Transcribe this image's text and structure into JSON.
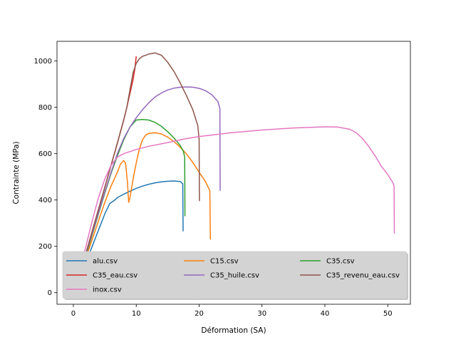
{
  "chart_data": {
    "type": "line",
    "title": "",
    "xlabel": "Déformation (SA)",
    "ylabel": "Contrainte (MPa)",
    "xlim": [
      -2.6,
      53.6
    ],
    "ylim": [
      -50,
      1085
    ],
    "xticks": [
      0,
      10,
      20,
      30,
      40,
      50
    ],
    "yticks": [
      0,
      200,
      400,
      600,
      800,
      1000
    ],
    "grid": false,
    "legend": {
      "position": "lower-left",
      "columns": 3
    },
    "series": [
      {
        "name": "alu.csv",
        "color": "#1f77b4",
        "points": [
          [
            0,
            0
          ],
          [
            1,
            60
          ],
          [
            2,
            130
          ],
          [
            3,
            200
          ],
          [
            4,
            270
          ],
          [
            5,
            340
          ],
          [
            5.8,
            385
          ],
          [
            6.5,
            398
          ],
          [
            7,
            410
          ],
          [
            8,
            425
          ],
          [
            9,
            438
          ],
          [
            10,
            450
          ],
          [
            11,
            460
          ],
          [
            12,
            468
          ],
          [
            13,
            474
          ],
          [
            14,
            478
          ],
          [
            15,
            481
          ],
          [
            16,
            482
          ],
          [
            17,
            480
          ],
          [
            17.4,
            470
          ],
          [
            17.45,
            265
          ]
        ]
      },
      {
        "name": "C15.csv",
        "color": "#ff7f0e",
        "points": [
          [
            0,
            0
          ],
          [
            1,
            70
          ],
          [
            2,
            150
          ],
          [
            3,
            230
          ],
          [
            4,
            310
          ],
          [
            5,
            390
          ],
          [
            6,
            460
          ],
          [
            7,
            520
          ],
          [
            7.5,
            555
          ],
          [
            8,
            570
          ],
          [
            8.3,
            560
          ],
          [
            8.6,
            480
          ],
          [
            8.8,
            390
          ],
          [
            9,
            410
          ],
          [
            9.5,
            490
          ],
          [
            10,
            560
          ],
          [
            10.5,
            620
          ],
          [
            11,
            660
          ],
          [
            11.5,
            680
          ],
          [
            12,
            688
          ],
          [
            13,
            690
          ],
          [
            14,
            685
          ],
          [
            15,
            672
          ],
          [
            16,
            652
          ],
          [
            17,
            628
          ],
          [
            18,
            598
          ],
          [
            19,
            562
          ],
          [
            20,
            520
          ],
          [
            21,
            480
          ],
          [
            21.7,
            440
          ],
          [
            21.8,
            230
          ]
        ]
      },
      {
        "name": "C35.csv",
        "color": "#2ca02c",
        "points": [
          [
            0,
            0
          ],
          [
            1,
            75
          ],
          [
            2,
            160
          ],
          [
            3,
            250
          ],
          [
            4,
            340
          ],
          [
            5,
            430
          ],
          [
            6,
            515
          ],
          [
            7,
            590
          ],
          [
            8,
            660
          ],
          [
            9,
            715
          ],
          [
            10,
            745
          ],
          [
            11,
            748
          ],
          [
            12,
            745
          ],
          [
            13,
            735
          ],
          [
            14,
            718
          ],
          [
            15,
            695
          ],
          [
            16,
            668
          ],
          [
            17,
            635
          ],
          [
            17.5,
            610
          ],
          [
            17.7,
            585
          ],
          [
            17.75,
            330
          ]
        ]
      },
      {
        "name": "C35_eau.csv",
        "color": "#d62728",
        "points": [
          [
            0,
            0
          ],
          [
            1,
            80
          ],
          [
            2,
            170
          ],
          [
            3,
            265
          ],
          [
            4,
            360
          ],
          [
            5,
            455
          ],
          [
            6,
            550
          ],
          [
            7,
            645
          ],
          [
            8,
            745
          ],
          [
            8.5,
            800
          ],
          [
            9,
            860
          ],
          [
            9.5,
            920
          ],
          [
            9.8,
            970
          ],
          [
            10,
            1020
          ]
        ]
      },
      {
        "name": "C35_huile.csv",
        "color": "#9467bd",
        "points": [
          [
            0,
            0
          ],
          [
            1,
            78
          ],
          [
            2,
            165
          ],
          [
            3,
            255
          ],
          [
            4,
            345
          ],
          [
            5,
            435
          ],
          [
            6,
            520
          ],
          [
            7,
            600
          ],
          [
            8,
            665
          ],
          [
            9,
            715
          ],
          [
            10,
            755
          ],
          [
            11,
            790
          ],
          [
            12,
            820
          ],
          [
            13,
            845
          ],
          [
            14,
            862
          ],
          [
            15,
            875
          ],
          [
            16,
            883
          ],
          [
            17,
            887
          ],
          [
            18,
            888
          ],
          [
            19,
            887
          ],
          [
            20,
            882
          ],
          [
            21,
            872
          ],
          [
            22,
            855
          ],
          [
            23,
            825
          ],
          [
            23.3,
            795
          ],
          [
            23.35,
            440
          ]
        ]
      },
      {
        "name": "C35_revenu_eau.csv",
        "color": "#8c564b",
        "points": [
          [
            0,
            0
          ],
          [
            1,
            80
          ],
          [
            2,
            170
          ],
          [
            3,
            265
          ],
          [
            4,
            360
          ],
          [
            5,
            455
          ],
          [
            6,
            550
          ],
          [
            7,
            645
          ],
          [
            8,
            745
          ],
          [
            8.5,
            800
          ],
          [
            9,
            875
          ],
          [
            9.5,
            950
          ],
          [
            10,
            990
          ],
          [
            10.5,
            1010
          ],
          [
            11,
            1020
          ],
          [
            12,
            1030
          ],
          [
            13,
            1035
          ],
          [
            14,
            1025
          ],
          [
            15,
            995
          ],
          [
            16,
            955
          ],
          [
            17,
            905
          ],
          [
            18,
            850
          ],
          [
            19,
            790
          ],
          [
            19.8,
            720
          ],
          [
            20,
            660
          ],
          [
            20.05,
            395
          ]
        ]
      },
      {
        "name": "inox.csv",
        "color": "#e377c2",
        "points": [
          [
            0,
            0
          ],
          [
            1,
            90
          ],
          [
            2,
            200
          ],
          [
            3,
            310
          ],
          [
            4,
            410
          ],
          [
            5,
            490
          ],
          [
            6,
            550
          ],
          [
            7,
            585
          ],
          [
            8,
            600
          ],
          [
            10,
            618
          ],
          [
            12,
            632
          ],
          [
            15,
            648
          ],
          [
            18,
            665
          ],
          [
            20,
            674
          ],
          [
            25,
            690
          ],
          [
            30,
            702
          ],
          [
            35,
            711
          ],
          [
            40,
            716
          ],
          [
            42,
            715
          ],
          [
            44,
            705
          ],
          [
            45,
            690
          ],
          [
            46,
            665
          ],
          [
            47,
            630
          ],
          [
            48,
            590
          ],
          [
            49,
            545
          ],
          [
            50,
            510
          ],
          [
            50.8,
            475
          ],
          [
            51,
            460
          ],
          [
            51.05,
            255
          ]
        ]
      }
    ]
  }
}
